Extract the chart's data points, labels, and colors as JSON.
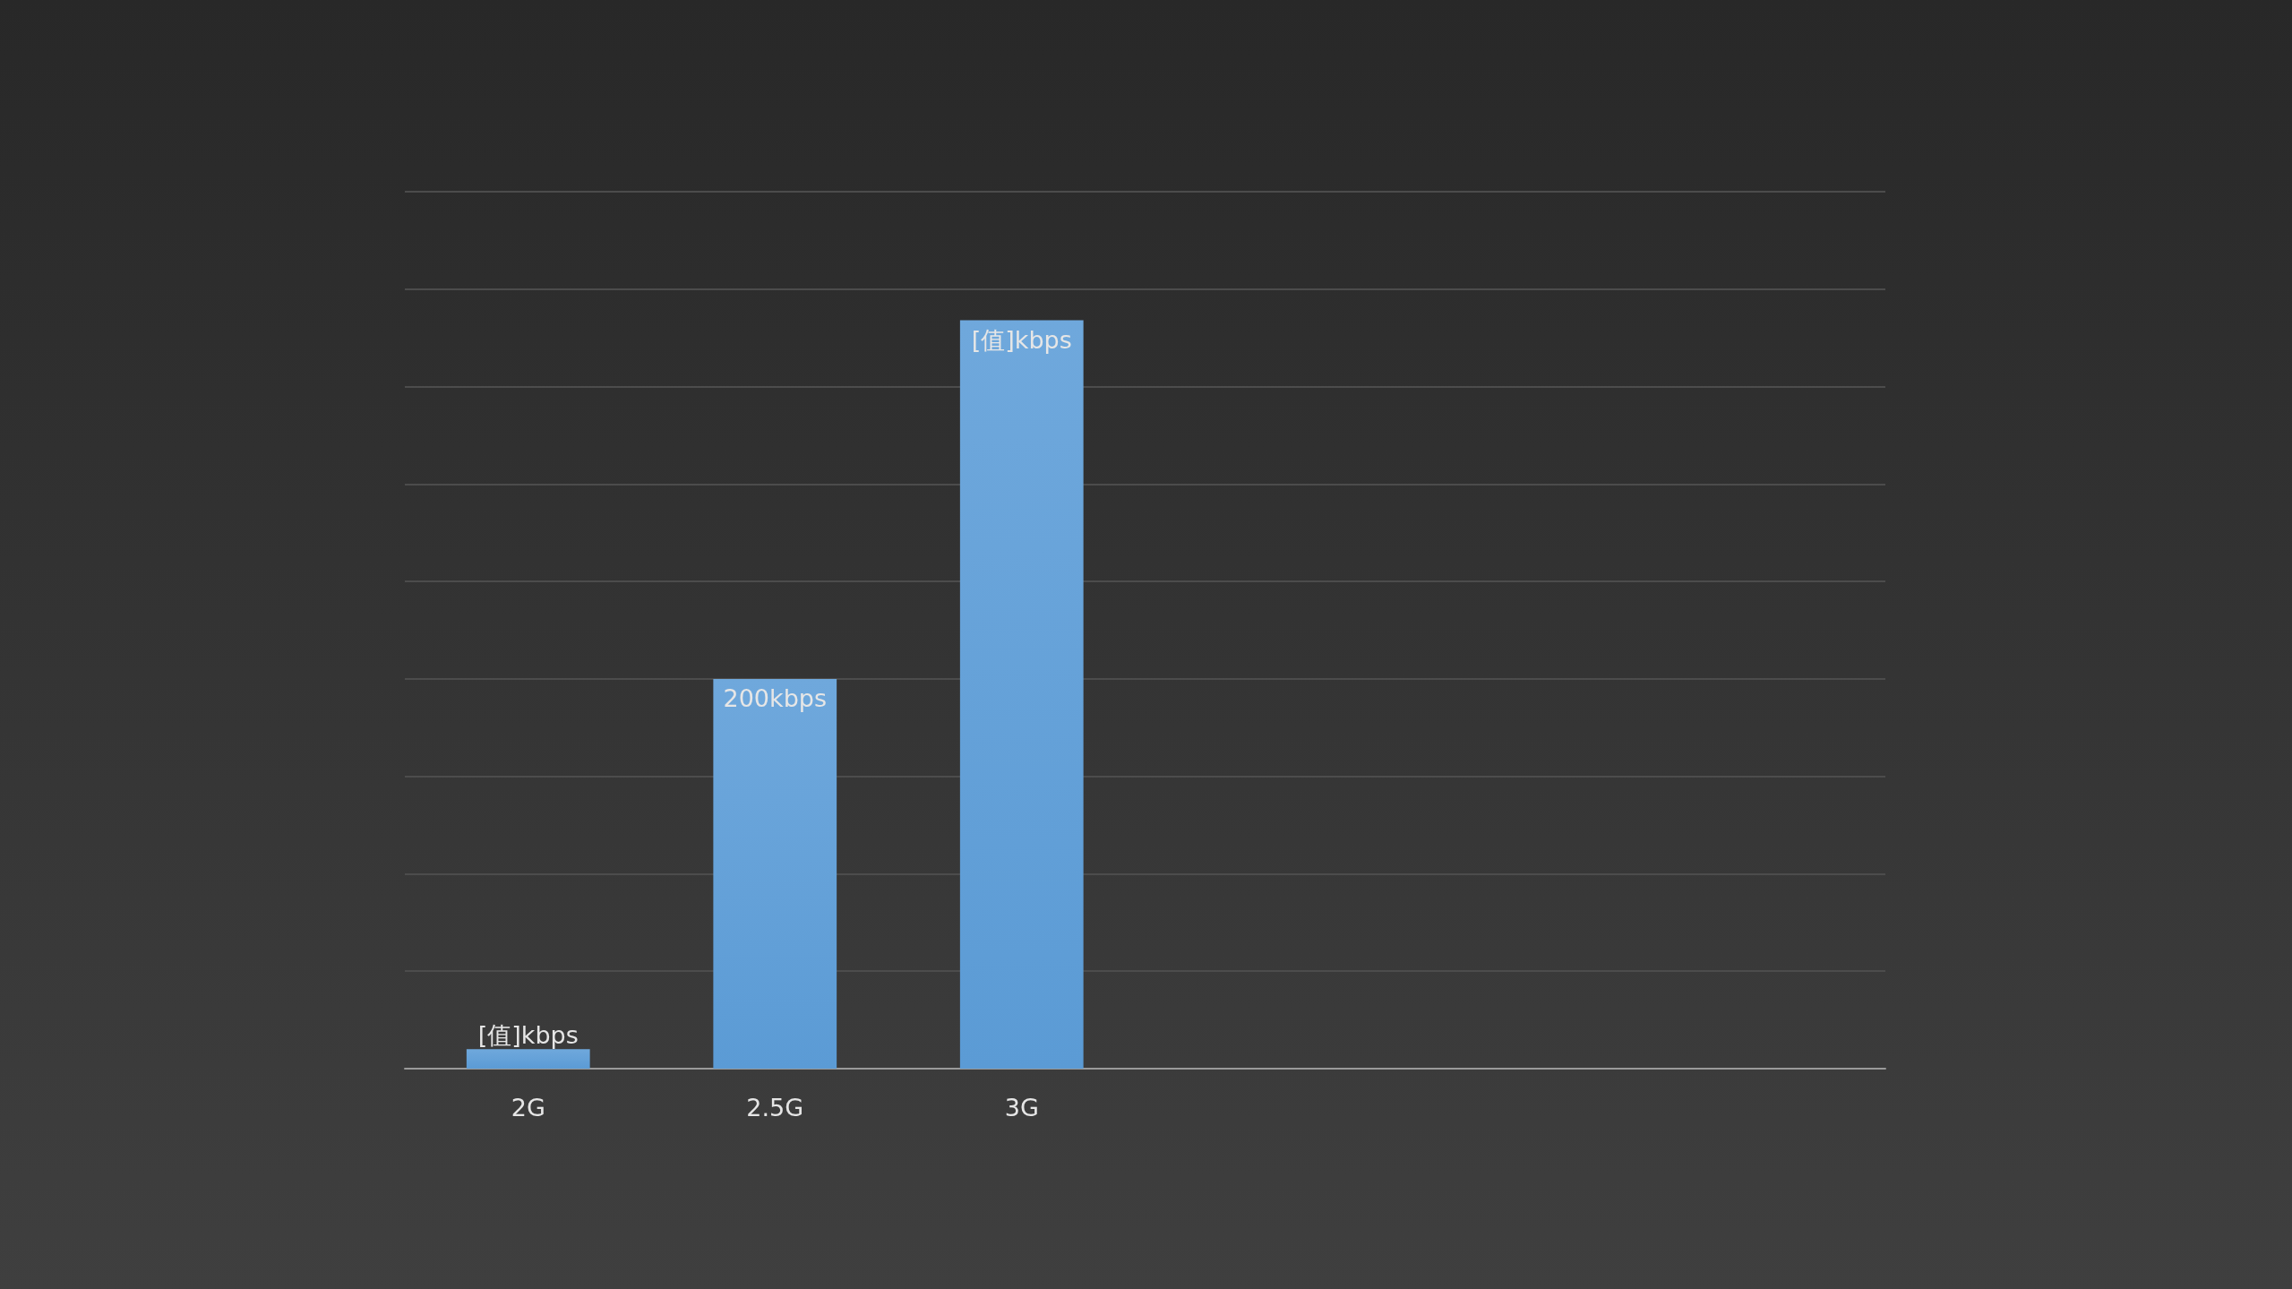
{
  "chart_data": {
    "type": "bar",
    "categories": [
      "2G",
      "2.5G",
      "3G",
      null,
      null,
      null
    ],
    "values": [
      10,
      200,
      384,
      null,
      null,
      null
    ],
    "value_labels": [
      "[值]kbps",
      "200kbps",
      "[值]kbps",
      null,
      null,
      null
    ],
    "color": "#5b9bd5",
    "ylim": [
      0,
      450
    ],
    "yticks": [
      {
        "value": 0,
        "label": null
      },
      {
        "value": 50,
        "label": null
      },
      {
        "value": 100,
        "label": null
      },
      {
        "value": 150,
        "label": null
      },
      {
        "value": 200,
        "label": null
      },
      {
        "value": 250,
        "label": null
      },
      {
        "value": 300,
        "label": null
      },
      {
        "value": 350,
        "label": null
      },
      {
        "value": 400,
        "label": null
      },
      {
        "value": 450,
        "label": null
      }
    ],
    "grid": "y",
    "tick_labels": "x"
  }
}
